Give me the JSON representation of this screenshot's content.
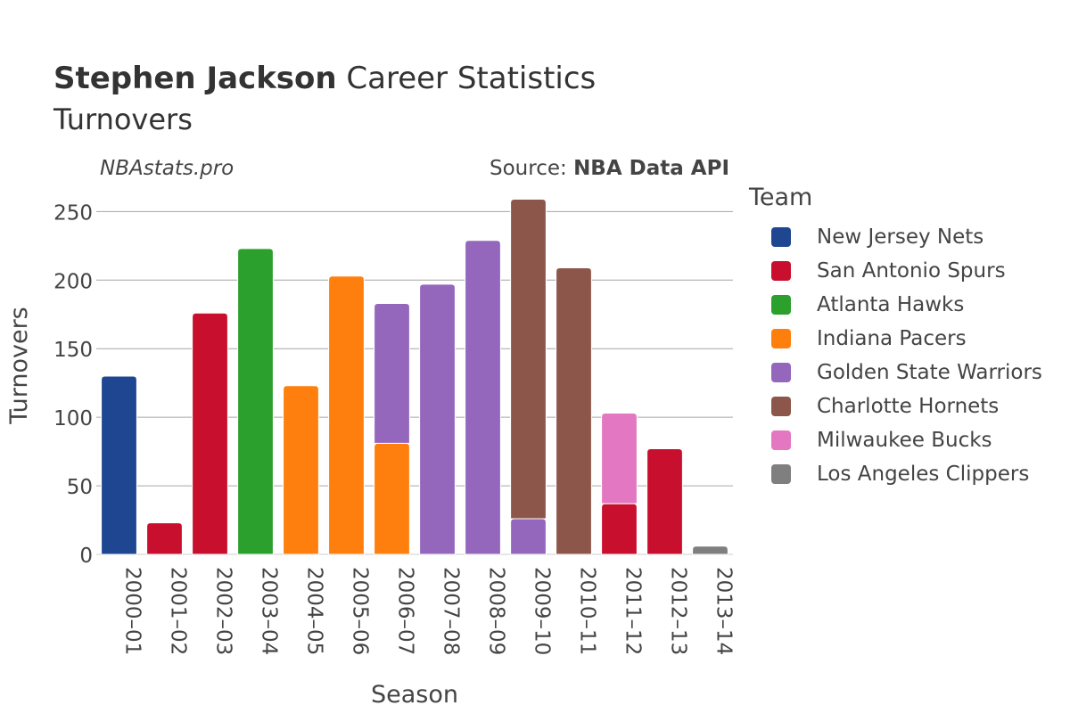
{
  "header": {
    "title_bold": "Stephen Jackson",
    "title_rest": " Career Statistics",
    "subtitle": "Turnovers",
    "watermark": "NBAstats.pro",
    "source_prefix": "Source: ",
    "source_name": "NBA Data API"
  },
  "legend": {
    "title": "Team",
    "items": [
      {
        "label": "New Jersey Nets",
        "color": "#1f4690"
      },
      {
        "label": "San Antonio Spurs",
        "color": "#c8102e"
      },
      {
        "label": "Atlanta Hawks",
        "color": "#2ca02c"
      },
      {
        "label": "Indiana Pacers",
        "color": "#ff7f0e"
      },
      {
        "label": "Golden State Warriors",
        "color": "#9467bd"
      },
      {
        "label": "Charlotte Hornets",
        "color": "#8c564b"
      },
      {
        "label": "Milwaukee Bucks",
        "color": "#e377c2"
      },
      {
        "label": "Los Angeles Clippers",
        "color": "#7f7f7f"
      }
    ]
  },
  "chart_data": {
    "type": "bar",
    "stacked": true,
    "xlabel": "Season",
    "ylabel": "Turnovers",
    "ylim": [
      0,
      260
    ],
    "yticks": [
      0,
      50,
      100,
      150,
      200,
      250
    ],
    "grid": true,
    "legend_position": "right",
    "categories": [
      "2000–01",
      "2001–02",
      "2002–03",
      "2003–04",
      "2004–05",
      "2005–06",
      "2006–07",
      "2007–08",
      "2008–09",
      "2009–10",
      "2010–11",
      "2011–12",
      "2012–13",
      "2013–14"
    ],
    "series": [
      {
        "name": "New Jersey Nets",
        "values": [
          130,
          0,
          0,
          0,
          0,
          0,
          0,
          0,
          0,
          0,
          0,
          0,
          0,
          0
        ]
      },
      {
        "name": "San Antonio Spurs",
        "values": [
          0,
          23,
          176,
          0,
          0,
          0,
          0,
          0,
          0,
          0,
          0,
          37,
          77,
          0
        ]
      },
      {
        "name": "Atlanta Hawks",
        "values": [
          0,
          0,
          0,
          223,
          0,
          0,
          0,
          0,
          0,
          0,
          0,
          0,
          0,
          0
        ]
      },
      {
        "name": "Indiana Pacers",
        "values": [
          0,
          0,
          0,
          0,
          123,
          203,
          81,
          0,
          0,
          0,
          0,
          0,
          0,
          0
        ]
      },
      {
        "name": "Golden State Warriors",
        "values": [
          0,
          0,
          0,
          0,
          0,
          0,
          102,
          197,
          229,
          26,
          0,
          0,
          0,
          0
        ]
      },
      {
        "name": "Charlotte Hornets",
        "values": [
          0,
          0,
          0,
          0,
          0,
          0,
          0,
          0,
          0,
          233,
          209,
          0,
          0,
          0
        ]
      },
      {
        "name": "Milwaukee Bucks",
        "values": [
          0,
          0,
          0,
          0,
          0,
          0,
          0,
          0,
          0,
          0,
          0,
          66,
          0,
          0
        ]
      },
      {
        "name": "Los Angeles Clippers",
        "values": [
          0,
          0,
          0,
          0,
          0,
          0,
          0,
          0,
          0,
          0,
          0,
          0,
          0,
          6
        ]
      }
    ]
  }
}
